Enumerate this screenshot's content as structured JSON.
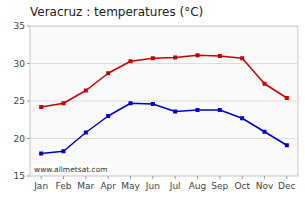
{
  "chart_data": {
    "type": "line",
    "title": "Veracruz : temperatures (°C)",
    "categories": [
      "Jan",
      "Feb",
      "Mar",
      "Apr",
      "May",
      "Jun",
      "Jul",
      "Aug",
      "Sep",
      "Oct",
      "Nov",
      "Dec"
    ],
    "series": [
      {
        "color": "#cc0000",
        "marker": "square",
        "values": [
          24.2,
          24.7,
          26.4,
          28.7,
          30.3,
          30.7,
          30.8,
          31.1,
          31.0,
          30.7,
          27.3,
          25.4
        ]
      },
      {
        "color": "#0000cc",
        "marker": "square",
        "values": [
          18.0,
          18.3,
          20.8,
          23.0,
          24.7,
          24.6,
          23.6,
          23.8,
          23.8,
          22.7,
          20.9,
          19.1
        ]
      }
    ],
    "ylim": [
      15,
      35
    ],
    "yticks": [
      15,
      20,
      25,
      30,
      35
    ],
    "grid": true,
    "annotations": [
      "www.allmetsat.com"
    ]
  }
}
